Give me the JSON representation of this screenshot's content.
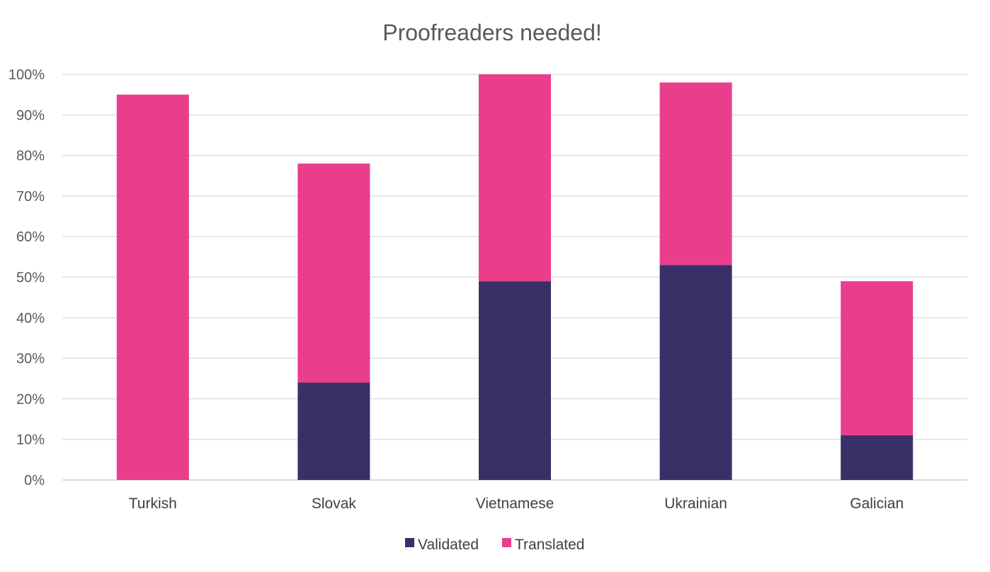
{
  "chart_data": {
    "type": "bar",
    "stacked": true,
    "title": "Proofreaders needed!",
    "xlabel": "",
    "ylabel": "",
    "categories": [
      "Turkish",
      "Slovak",
      "Vietnamese",
      "Ukrainian",
      "Galician"
    ],
    "series": [
      {
        "name": "Validated",
        "color": "#3a3068",
        "values": [
          0,
          24,
          49,
          53,
          11
        ]
      },
      {
        "name": "Translated",
        "color": "#e83e8c",
        "values": [
          95,
          54,
          51,
          45,
          38
        ]
      }
    ],
    "ylim": [
      0,
      100
    ],
    "yticks": [
      "0%",
      "10%",
      "20%",
      "30%",
      "40%",
      "50%",
      "60%",
      "70%",
      "80%",
      "90%",
      "100%"
    ],
    "grid": true,
    "legend_position": "bottom"
  }
}
